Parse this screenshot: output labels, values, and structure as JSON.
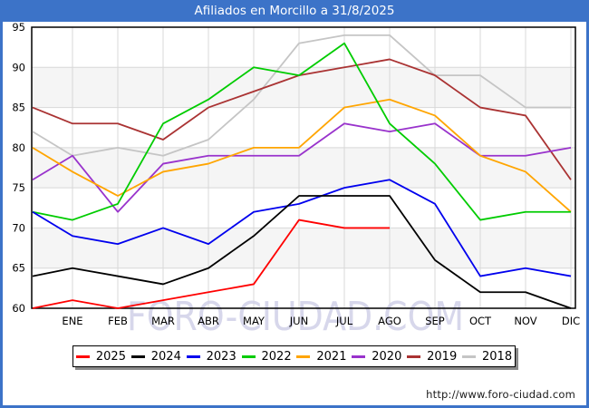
{
  "window": {
    "title": "Afiliados en Morcillo a 31/8/2025",
    "title_bar_color": "#3c73c8",
    "frame_color": "#3c73c8"
  },
  "watermark": "FORO-CIUDAD.COM",
  "footer": {
    "url": "http://www.foro-ciudad.com"
  },
  "style": {
    "band_color": "#f5f5f5",
    "grid_color": "#d8d8d8",
    "axis_color": "#000000",
    "label_color": "#000000",
    "watermark_color": "#d0d0e8",
    "legend_shadow": "#8a8a8a"
  },
  "chart_data": {
    "type": "line",
    "title": "Afiliados en Morcillo a 31/8/2025",
    "categories": [
      "ENE",
      "FEB",
      "MAR",
      "ABR",
      "MAY",
      "JUN",
      "JUL",
      "AGO",
      "SEP",
      "OCT",
      "NOV",
      "DIC"
    ],
    "ylim": [
      60,
      95
    ],
    "y_ticks": [
      60,
      65,
      70,
      75,
      80,
      85,
      90,
      95
    ],
    "grid": true,
    "legend_position": "bottom",
    "series": [
      {
        "name": "2025",
        "color": "#ff0000",
        "dec_prev": 60,
        "values": [
          61,
          60,
          61,
          62,
          63,
          71,
          70,
          70,
          null,
          null,
          null,
          null
        ]
      },
      {
        "name": "2024",
        "color": "#000000",
        "dec_prev": 64,
        "values": [
          65,
          64,
          63,
          65,
          69,
          74,
          74,
          74,
          66,
          62,
          62,
          60
        ]
      },
      {
        "name": "2023",
        "color": "#0000ee",
        "dec_prev": 72,
        "values": [
          69,
          68,
          70,
          68,
          72,
          73,
          75,
          76,
          73,
          64,
          65,
          64
        ]
      },
      {
        "name": "2022",
        "color": "#00cc00",
        "dec_prev": 72,
        "values": [
          71,
          73,
          83,
          86,
          90,
          89,
          93,
          83,
          78,
          71,
          72,
          72
        ]
      },
      {
        "name": "2021",
        "color": "#ffa500",
        "dec_prev": 80,
        "values": [
          77,
          74,
          77,
          78,
          80,
          80,
          85,
          86,
          84,
          79,
          77,
          72
        ]
      },
      {
        "name": "2020",
        "color": "#9933cc",
        "dec_prev": 76,
        "values": [
          79,
          72,
          78,
          79,
          79,
          79,
          83,
          82,
          83,
          79,
          79,
          80
        ]
      },
      {
        "name": "2019",
        "color": "#aa3333",
        "dec_prev": 85,
        "values": [
          83,
          83,
          81,
          85,
          87,
          89,
          90,
          91,
          89,
          85,
          84,
          76
        ]
      },
      {
        "name": "2018",
        "color": "#c5c5c5",
        "dec_prev": 82,
        "values": [
          79,
          80,
          79,
          81,
          86,
          93,
          94,
          94,
          89,
          89,
          85,
          85
        ]
      }
    ]
  }
}
